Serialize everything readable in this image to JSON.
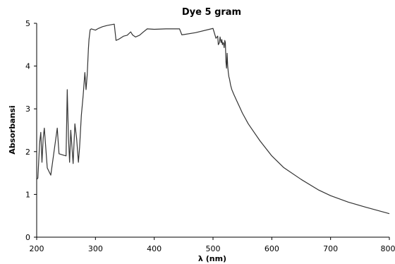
{
  "chart_data": {
    "type": "line",
    "title": "Dye 5 gram",
    "xlabel": "λ (nm)",
    "ylabel": "Absorbansi",
    "xlim": [
      200,
      800
    ],
    "ylim": [
      0,
      5
    ],
    "xticks": [
      200,
      300,
      400,
      500,
      600,
      700,
      800
    ],
    "yticks": [
      0,
      1,
      2,
      3,
      4,
      5
    ],
    "grid": false,
    "line_color": "#333333",
    "series": [
      {
        "x": [
          200,
          202,
          205,
          207,
          209,
          211,
          213,
          218,
          224,
          230,
          235,
          238,
          245,
          250,
          252,
          254,
          256,
          258,
          262,
          265,
          268,
          271,
          273,
          276,
          279,
          282,
          284,
          286,
          288,
          289,
          291,
          293,
          295,
          300,
          305,
          312,
          320,
          332,
          335,
          340,
          348,
          354,
          360,
          363,
          368,
          375,
          380,
          388,
          400,
          420,
          443,
          447,
          470,
          500,
          505,
          508,
          509,
          511,
          512,
          513,
          514,
          515,
          516,
          517,
          518,
          519,
          520,
          521,
          522,
          523,
          524,
          525,
          526,
          527,
          528,
          530,
          532,
          535,
          540,
          545,
          550,
          560,
          570,
          580,
          600,
          620,
          650,
          680,
          700,
          730,
          760,
          800
        ],
        "y": [
          1.35,
          1.38,
          2.2,
          2.45,
          1.75,
          2.3,
          2.55,
          1.62,
          1.45,
          2.05,
          2.55,
          1.95,
          1.92,
          1.9,
          3.45,
          2.35,
          1.75,
          2.5,
          1.72,
          2.65,
          2.3,
          1.75,
          2.1,
          2.85,
          3.3,
          3.85,
          3.45,
          3.8,
          4.4,
          4.62,
          4.85,
          4.87,
          4.86,
          4.84,
          4.88,
          4.92,
          4.95,
          4.98,
          4.6,
          4.63,
          4.7,
          4.72,
          4.8,
          4.73,
          4.68,
          4.72,
          4.78,
          4.87,
          4.86,
          4.87,
          4.87,
          4.73,
          4.78,
          4.88,
          4.65,
          4.7,
          4.5,
          4.55,
          4.68,
          4.6,
          4.55,
          4.62,
          4.5,
          4.55,
          4.52,
          4.43,
          4.6,
          4.55,
          4.1,
          3.95,
          4.3,
          4.0,
          3.85,
          3.75,
          3.7,
          3.55,
          3.45,
          3.35,
          3.2,
          3.05,
          2.9,
          2.65,
          2.45,
          2.25,
          1.9,
          1.63,
          1.35,
          1.1,
          0.97,
          0.82,
          0.7,
          0.55
        ]
      }
    ]
  }
}
